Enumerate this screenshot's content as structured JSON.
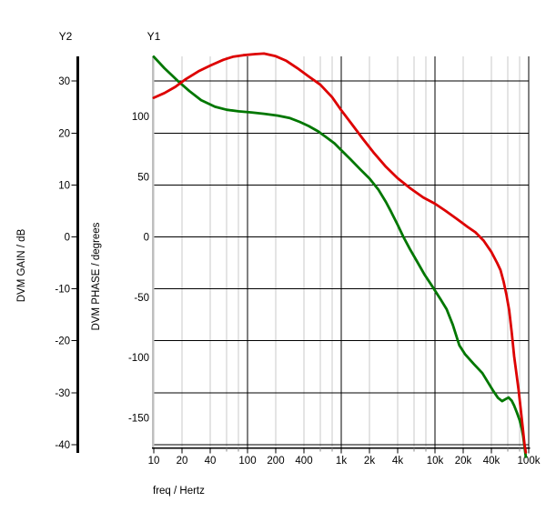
{
  "labels": {
    "y2_header": "Y2",
    "y1_header": "Y1",
    "gain_axis_title": "DVM GAIN / dB",
    "phase_axis_title": "DVM PHASE / degrees",
    "x_axis_title": "freq / Hertz"
  },
  "chart_data": {
    "type": "line",
    "title": "",
    "legend": "none",
    "x_axis": {
      "label": "freq / Hertz",
      "scale": "log",
      "min": 10,
      "max": 100000,
      "ticks": [
        {
          "v": 10,
          "l": "10"
        },
        {
          "v": 20,
          "l": "20"
        },
        {
          "v": 40,
          "l": "40"
        },
        {
          "v": 100,
          "l": "100"
        },
        {
          "v": 200,
          "l": "200"
        },
        {
          "v": 400,
          "l": "400"
        },
        {
          "v": 1000,
          "l": "1k"
        },
        {
          "v": 2000,
          "l": "2k"
        },
        {
          "v": 4000,
          "l": "4k"
        },
        {
          "v": 10000,
          "l": "10k"
        },
        {
          "v": 20000,
          "l": "20k"
        },
        {
          "v": 40000,
          "l": "40k"
        },
        {
          "v": 100000,
          "l": "100k"
        }
      ],
      "minor_gridline_multipliers": [
        2,
        4,
        6,
        8
      ],
      "major_gridlines": [
        100,
        1000,
        10000,
        100000
      ]
    },
    "y_axes": {
      "Y2": {
        "title": "DVM GAIN / dB",
        "units": "dB",
        "axis_color": "#000000",
        "ticks": [
          30,
          20,
          10,
          0,
          -10,
          -20,
          -30,
          -40
        ],
        "tick_step": 10,
        "top_value": 34.8,
        "bottom_value": -40.7,
        "grid": true
      },
      "Y1": {
        "title": "DVM PHASE / degrees",
        "units": "degrees",
        "axis_color": "#bfbfbf",
        "ticks": [
          100,
          50,
          0,
          -50,
          -100,
          -150
        ],
        "tick_step": 50,
        "top_value": 149.8,
        "bottom_value": -174.7,
        "grid": false
      }
    },
    "colors": {
      "minor_grid": "#c8c8c8",
      "major_grid": "#000000",
      "text": "#000000"
    },
    "series": [
      {
        "name": "DVM PHASE",
        "axis": "Y1",
        "color": "#007700",
        "points": [
          [
            10,
            149.5
          ],
          [
            13,
            140.0
          ],
          [
            18,
            129.5
          ],
          [
            24,
            121.0
          ],
          [
            32,
            113.5
          ],
          [
            45,
            108.0
          ],
          [
            60,
            105.5
          ],
          [
            80,
            104.2
          ],
          [
            110,
            103.3
          ],
          [
            150,
            102.2
          ],
          [
            210,
            100.7
          ],
          [
            280,
            98.7
          ],
          [
            360,
            95.5
          ],
          [
            450,
            92.0
          ],
          [
            570,
            87.5
          ],
          [
            700,
            82.5
          ],
          [
            850,
            77.5
          ],
          [
            1000,
            72.0
          ],
          [
            1250,
            64.5
          ],
          [
            1600,
            56.0
          ],
          [
            2000,
            48.5
          ],
          [
            2500,
            39.0
          ],
          [
            3000,
            29.0
          ],
          [
            3400,
            21.0
          ],
          [
            4000,
            10.0
          ],
          [
            4600,
            0.0
          ],
          [
            5400,
            -10.0
          ],
          [
            6400,
            -20.0
          ],
          [
            7700,
            -31.0
          ],
          [
            9000,
            -39.0
          ],
          [
            10000,
            -44.5
          ],
          [
            11500,
            -52.0
          ],
          [
            13300,
            -60.0
          ],
          [
            15500,
            -73.0
          ],
          [
            18200,
            -90.0
          ],
          [
            21000,
            -97.5
          ],
          [
            26000,
            -105.5
          ],
          [
            32000,
            -113.0
          ],
          [
            37000,
            -121.0
          ],
          [
            42000,
            -128.0
          ],
          [
            47000,
            -133.5
          ],
          [
            52000,
            -136.3
          ],
          [
            57000,
            -134.5
          ],
          [
            61000,
            -133.3
          ],
          [
            66000,
            -136.0
          ],
          [
            70000,
            -140.0
          ],
          [
            75000,
            -146.0
          ],
          [
            80000,
            -152.0
          ],
          [
            84000,
            -158.5
          ],
          [
            87000,
            -165.0
          ],
          [
            90000,
            -173.5
          ],
          [
            93000,
            -182.5
          ]
        ]
      },
      {
        "name": "DVM GAIN",
        "axis": "Y2",
        "color": "#dd0000",
        "points": [
          [
            10,
            26.8
          ],
          [
            13,
            27.7
          ],
          [
            17,
            28.9
          ],
          [
            22,
            30.4
          ],
          [
            30,
            31.9
          ],
          [
            40,
            33.0
          ],
          [
            55,
            34.1
          ],
          [
            70,
            34.7
          ],
          [
            90,
            35.0
          ],
          [
            120,
            35.2
          ],
          [
            150,
            35.3
          ],
          [
            200,
            34.8
          ],
          [
            260,
            33.9
          ],
          [
            340,
            32.5
          ],
          [
            450,
            30.9
          ],
          [
            600,
            29.3
          ],
          [
            800,
            26.9
          ],
          [
            1000,
            24.4
          ],
          [
            1300,
            21.7
          ],
          [
            1700,
            18.9
          ],
          [
            2200,
            16.3
          ],
          [
            3000,
            13.5
          ],
          [
            4000,
            11.3
          ],
          [
            5500,
            9.3
          ],
          [
            7500,
            7.6
          ],
          [
            10000,
            6.4
          ],
          [
            13000,
            5.0
          ],
          [
            17000,
            3.5
          ],
          [
            22000,
            2.0
          ],
          [
            27000,
            0.9
          ],
          [
            33000,
            -0.7
          ],
          [
            40000,
            -2.9
          ],
          [
            46000,
            -5.0
          ],
          [
            50000,
            -6.4
          ],
          [
            54000,
            -8.6
          ],
          [
            58000,
            -11.2
          ],
          [
            62000,
            -14.2
          ],
          [
            66000,
            -18.5
          ],
          [
            70000,
            -23.0
          ],
          [
            74000,
            -26.3
          ],
          [
            78000,
            -29.5
          ],
          [
            82000,
            -33.0
          ],
          [
            86000,
            -36.5
          ],
          [
            90000,
            -39.8
          ],
          [
            93000,
            -41.5
          ]
        ]
      }
    ]
  }
}
